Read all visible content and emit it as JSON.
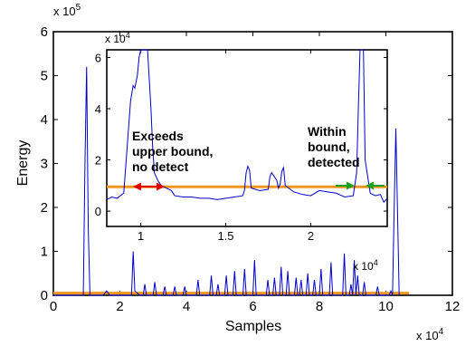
{
  "colors": {
    "signal": "#0000cc",
    "bound": "#f0961e",
    "arrow_exceeds": "#e00000",
    "arrow_within": "#1fa11f",
    "axes": "#000000",
    "background": "#ffffff"
  },
  "chart_data": [
    {
      "type": "line",
      "xlabel": "Samples",
      "ylabel": "Energy",
      "x_multiplier": "x 10",
      "x_multiplier_exp": "4",
      "y_multiplier": "x 10",
      "y_multiplier_exp": "5",
      "xlim": [
        0,
        12
      ],
      "ylim": [
        0,
        6
      ],
      "xticks": [
        "0",
        "2",
        "4",
        "6",
        "8",
        "10",
        "12"
      ],
      "yticks": [
        "0",
        "1",
        "2",
        "3",
        "4",
        "5",
        "6"
      ],
      "grid": false,
      "bound_level": 0.05,
      "bound_range": [
        0,
        10.7
      ],
      "series": [
        {
          "x": [
            0,
            0.9,
            0.95,
            1.0,
            1.05,
            1.1,
            1.5,
            1.6,
            1.65,
            1.7,
            2.0,
            2.35,
            2.4,
            2.45,
            2.6,
            2.7,
            2.75,
            2.8,
            2.9,
            3.0,
            3.05,
            3.1,
            3.2,
            3.3,
            3.35,
            3.4,
            3.5,
            3.6,
            3.65,
            3.7,
            3.8,
            3.9,
            3.95,
            4.0,
            4.2,
            4.3,
            4.35,
            4.4,
            4.6,
            4.7,
            4.75,
            4.8,
            4.9,
            4.95,
            5.0,
            5.15,
            5.2,
            5.25,
            5.4,
            5.45,
            5.5,
            5.7,
            5.75,
            5.8,
            5.9,
            6.0,
            6.05,
            6.1,
            6.3,
            6.4,
            6.45,
            6.5,
            6.6,
            6.65,
            6.7,
            6.8,
            6.85,
            6.9,
            7.0,
            7.05,
            7.1,
            7.25,
            7.3,
            7.35,
            7.4,
            7.45,
            7.5,
            7.6,
            7.65,
            7.7,
            7.8,
            7.85,
            7.9,
            8.0,
            8.05,
            8.1,
            8.2,
            8.3,
            8.35,
            8.4,
            8.6,
            8.7,
            8.75,
            8.8,
            8.9,
            8.95,
            9.0,
            9.05,
            9.1,
            9.15,
            9.2,
            9.3,
            9.35,
            9.4,
            9.5,
            9.6,
            9.7,
            9.75,
            9.8,
            9.9,
            10.0,
            10.1,
            10.15,
            10.2,
            10.25,
            10.3,
            10.4
          ],
          "y": [
            0,
            0,
            3.0,
            5.2,
            1.5,
            0,
            0,
            0.1,
            0.05,
            0,
            0,
            0,
            1.0,
            0.1,
            0,
            0,
            0.25,
            0,
            0,
            0,
            0.3,
            0,
            0,
            0,
            0.2,
            0,
            0,
            0,
            0.2,
            0,
            0,
            0,
            0.2,
            0,
            0,
            0,
            0.35,
            0,
            0,
            0,
            0.45,
            0,
            0,
            0.25,
            0,
            0,
            0.45,
            0,
            0,
            0.55,
            0,
            0,
            0.6,
            0,
            0,
            0,
            0.8,
            0,
            0,
            0,
            0.35,
            0,
            0,
            0.4,
            0,
            0,
            0.65,
            0,
            0,
            0.55,
            0,
            0,
            0.4,
            0,
            0,
            0.35,
            0,
            0,
            0.5,
            0,
            0,
            0.35,
            0,
            0,
            0.6,
            0,
            0,
            0,
            0.75,
            0,
            0,
            0,
            0.95,
            0,
            0,
            0.25,
            0,
            0.8,
            0,
            0.45,
            0,
            0,
            0.3,
            0,
            0,
            0,
            0,
            0.2,
            0,
            0,
            0,
            0,
            0.1,
            0,
            2.0,
            3.8,
            0
          ]
        }
      ]
    },
    {
      "type": "line",
      "role": "inset",
      "x_multiplier": "x 10",
      "x_multiplier_exp": "4",
      "y_multiplier": "x 10",
      "y_multiplier_exp": "4",
      "xlim": [
        0.8,
        2.45
      ],
      "ylim": [
        -0.6,
        6.3
      ],
      "xticks": [
        "1",
        "1.5",
        "2"
      ],
      "yticks": [
        "0",
        "2",
        "4",
        "6"
      ],
      "bound_level": 0.95,
      "annotations": [
        "Exceeds",
        "upper bound,",
        "no detect",
        "Within",
        "bound,",
        "detected"
      ],
      "series": [
        {
          "x": [
            0.8,
            0.83,
            0.86,
            0.88,
            0.9,
            0.92,
            0.94,
            0.955,
            0.965,
            0.98,
            0.99,
            1.0,
            1.02,
            1.04,
            1.06,
            1.07,
            1.08,
            1.1,
            1.12,
            1.15,
            1.18,
            1.2,
            1.25,
            1.3,
            1.35,
            1.4,
            1.45,
            1.5,
            1.55,
            1.6,
            1.61,
            1.62,
            1.63,
            1.64,
            1.65,
            1.7,
            1.75,
            1.76,
            1.77,
            1.8,
            1.81,
            1.82,
            1.83,
            1.84,
            1.85,
            1.9,
            1.95,
            2.0,
            2.05,
            2.1,
            2.15,
            2.2,
            2.25,
            2.27,
            2.28,
            2.29,
            2.3,
            2.31,
            2.32,
            2.35,
            2.38,
            2.41,
            2.43,
            2.45
          ],
          "y": [
            0.45,
            0.55,
            0.5,
            0.6,
            0.7,
            2.5,
            4.3,
            4.9,
            4.8,
            5.3,
            6.0,
            6.3,
            6.3,
            6.3,
            4.0,
            2.5,
            1.5,
            1.2,
            1.0,
            0.9,
            0.8,
            0.6,
            0.55,
            0.55,
            0.5,
            0.5,
            0.45,
            0.5,
            0.55,
            0.6,
            0.8,
            1.5,
            1.75,
            1.6,
            0.9,
            0.8,
            0.85,
            1.35,
            1.5,
            1.2,
            0.9,
            1.05,
            1.55,
            1.7,
            1.0,
            0.75,
            0.65,
            0.6,
            0.8,
            0.75,
            0.7,
            0.55,
            0.6,
            1.5,
            4.0,
            6.3,
            6.3,
            6.3,
            2.0,
            0.7,
            0.6,
            0.65,
            0.35,
            0.5
          ]
        }
      ]
    }
  ]
}
